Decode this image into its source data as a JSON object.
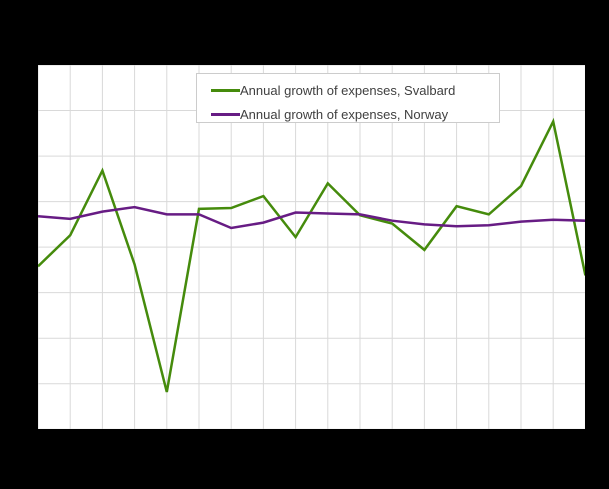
{
  "colors": {
    "canvas_background": "#000000",
    "plot_background": "#ffffff",
    "gridline": "#d9d9d9",
    "legend_border": "#cccccc",
    "legend_text": "#404040",
    "svalbard_line": "#458b0c",
    "norway_line": "#671c84"
  },
  "chart_data": {
    "type": "line",
    "title": "",
    "xlabel": "",
    "ylabel": "",
    "x_tick_labels": [],
    "y_tick_labels": [],
    "axis_labels_visible": false,
    "y_axis_assumed": true,
    "ylim": [
      -20,
      20
    ],
    "y_grid_step": 5,
    "n_points": 18,
    "grid": true,
    "legend_position": "top-center inside plot",
    "series": [
      {
        "name": "Annual growth of expenses, Svalbard",
        "color": "#458b0c",
        "values": [
          -2.1,
          1.3,
          8.4,
          -1.9,
          -15.9,
          4.2,
          4.3,
          5.6,
          1.1,
          7.0,
          3.5,
          2.6,
          -0.3,
          4.5,
          3.6,
          6.7,
          13.8,
          -3.1
        ]
      },
      {
        "name": "Annual growth of expenses, Norway",
        "color": "#671c84",
        "values": [
          3.4,
          3.1,
          3.9,
          4.4,
          3.6,
          3.6,
          2.1,
          2.7,
          3.8,
          3.7,
          3.6,
          2.9,
          2.5,
          2.3,
          2.4,
          2.8,
          3.0,
          2.9
        ]
      }
    ]
  }
}
